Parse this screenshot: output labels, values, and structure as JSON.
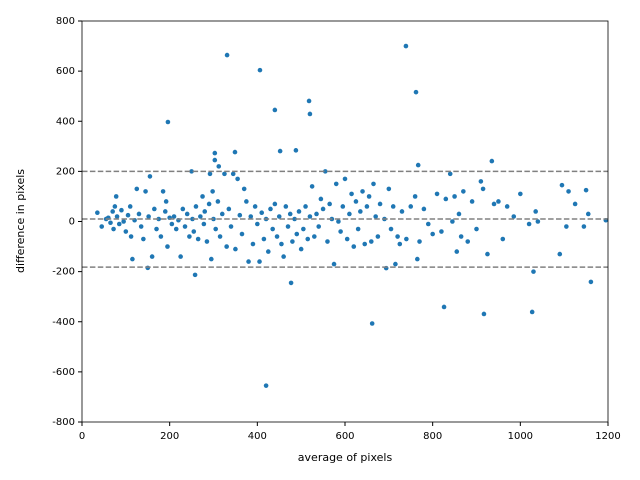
{
  "chart_data": {
    "type": "scatter",
    "color": "#1f77b4",
    "x_label": "average of pixels",
    "y_label": "difference in pixels",
    "xlim": [
      0,
      1200
    ],
    "ylim": [
      -800,
      800
    ],
    "xticks": [
      0,
      200,
      400,
      600,
      800,
      1000,
      1200
    ],
    "yticks": [
      -800,
      -600,
      -400,
      -200,
      0,
      200,
      400,
      600,
      800
    ],
    "reference_lines": [
      200,
      10,
      -182
    ],
    "reference_color": "#808080",
    "x": [
      35,
      45,
      55,
      60,
      65,
      70,
      72,
      75,
      78,
      80,
      85,
      90,
      95,
      100,
      105,
      110,
      112,
      115,
      120,
      125,
      130,
      135,
      140,
      145,
      150,
      152,
      155,
      160,
      165,
      170,
      175,
      180,
      185,
      190,
      192,
      195,
      200,
      205,
      210,
      215,
      220,
      225,
      230,
      235,
      240,
      245,
      250,
      252,
      255,
      260,
      265,
      270,
      275,
      278,
      280,
      285,
      290,
      292,
      295,
      298,
      300,
      305,
      310,
      312,
      315,
      320,
      325,
      330,
      335,
      340,
      345,
      350,
      355,
      360,
      365,
      370,
      375,
      380,
      385,
      390,
      395,
      400,
      405,
      410,
      415,
      420,
      425,
      430,
      435,
      440,
      445,
      450,
      455,
      460,
      465,
      470,
      475,
      480,
      485,
      490,
      495,
      500,
      505,
      510,
      515,
      520,
      525,
      530,
      535,
      540,
      545,
      550,
      555,
      560,
      565,
      570,
      575,
      580,
      585,
      590,
      595,
      600,
      605,
      610,
      615,
      620,
      625,
      630,
      635,
      640,
      645,
      650,
      655,
      660,
      665,
      670,
      675,
      680,
      690,
      700,
      705,
      710,
      715,
      720,
      725,
      730,
      740,
      750,
      760,
      765,
      770,
      780,
      790,
      800,
      810,
      820,
      830,
      840,
      845,
      850,
      855,
      860,
      865,
      870,
      880,
      890,
      900,
      910,
      915,
      925,
      940,
      950,
      960,
      970,
      985,
      1000,
      1020,
      1030,
      1035,
      1040,
      1090,
      1095,
      1110,
      1105,
      1125,
      1145,
      1150,
      1155,
      1195,
      331,
      406,
      739,
      762,
      196,
      440,
      518,
      520,
      488,
      452,
      303,
      303,
      349,
      767,
      935,
      420,
      662,
      826,
      917,
      1027,
      1161,
      477,
      258,
      694
    ],
    "values": [
      35,
      -20,
      10,
      15,
      -5,
      40,
      -30,
      60,
      100,
      20,
      -10,
      45,
      0,
      -40,
      25,
      60,
      -60,
      -150,
      5,
      130,
      30,
      -20,
      -70,
      120,
      -185,
      20,
      180,
      -140,
      50,
      -30,
      10,
      -60,
      120,
      40,
      80,
      -100,
      15,
      -10,
      20,
      -30,
      5,
      -140,
      50,
      -20,
      30,
      -60,
      200,
      10,
      -40,
      60,
      -70,
      20,
      100,
      -10,
      40,
      -80,
      70,
      190,
      -150,
      120,
      10,
      -30,
      80,
      220,
      -60,
      30,
      190,
      -100,
      50,
      -20,
      190,
      -110,
      170,
      25,
      -50,
      130,
      80,
      -160,
      20,
      -90,
      60,
      -10,
      -160,
      35,
      -70,
      10,
      -120,
      50,
      -30,
      70,
      -60,
      20,
      -90,
      -140,
      60,
      -20,
      30,
      -80,
      10,
      -50,
      40,
      -110,
      -30,
      60,
      -70,
      20,
      140,
      -60,
      30,
      -20,
      90,
      50,
      200,
      -80,
      70,
      10,
      -170,
      150,
      0,
      -40,
      60,
      170,
      -70,
      30,
      110,
      -100,
      80,
      -30,
      40,
      120,
      -90,
      60,
      100,
      -80,
      150,
      20,
      -60,
      70,
      10,
      130,
      -30,
      60,
      -170,
      -60,
      -90,
      40,
      -70,
      60,
      100,
      -150,
      -80,
      50,
      -10,
      -50,
      110,
      -40,
      90,
      190,
      0,
      100,
      -120,
      30,
      -60,
      120,
      -80,
      80,
      -30,
      160,
      130,
      -130,
      70,
      80,
      -70,
      60,
      20,
      110,
      -10,
      -200,
      40,
      0,
      -130,
      145,
      120,
      -20,
      70,
      -20,
      125,
      30,
      5,
      664,
      604,
      700,
      516,
      397,
      445,
      481,
      429,
      284,
      281,
      273,
      245,
      277,
      225,
      241,
      -655,
      -407,
      -341,
      -369,
      -361,
      -241,
      -245,
      -213,
      -186
    ]
  }
}
